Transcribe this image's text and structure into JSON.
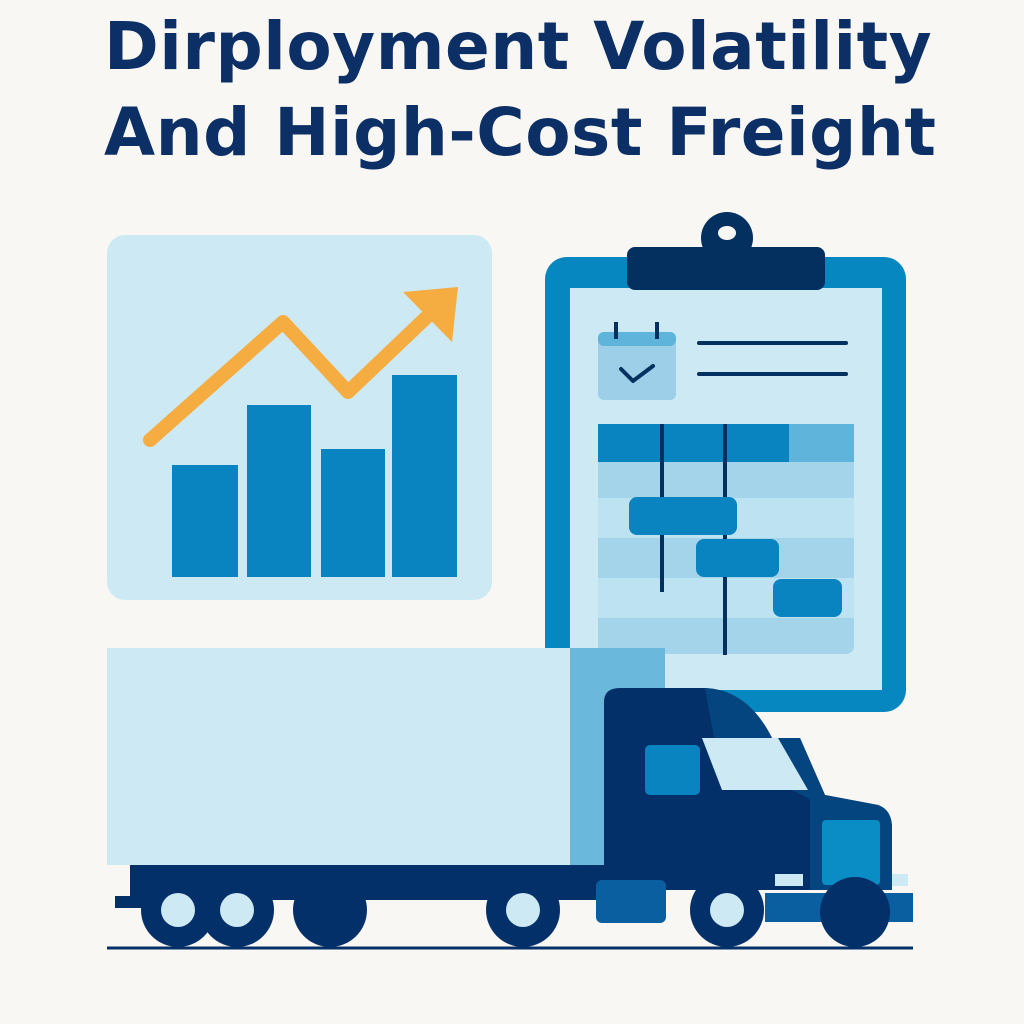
{
  "title": {
    "line1": "Dirployment Volatility",
    "line2": "And High-Cost Freight"
  },
  "colors": {
    "navy": "#04306a",
    "blue": "#0a84c1",
    "light_blue": "#cde9f3",
    "mid_blue": "#6ab8db",
    "orange": "#f5ad42",
    "background": "#f8f7f3"
  },
  "illustration": {
    "chart_icon": "bar-chart-with-rising-arrow",
    "clipboard_icon": "clipboard-with-gantt-schedule",
    "calendar_icon": "calendar-check",
    "truck_icon": "semi-truck"
  }
}
